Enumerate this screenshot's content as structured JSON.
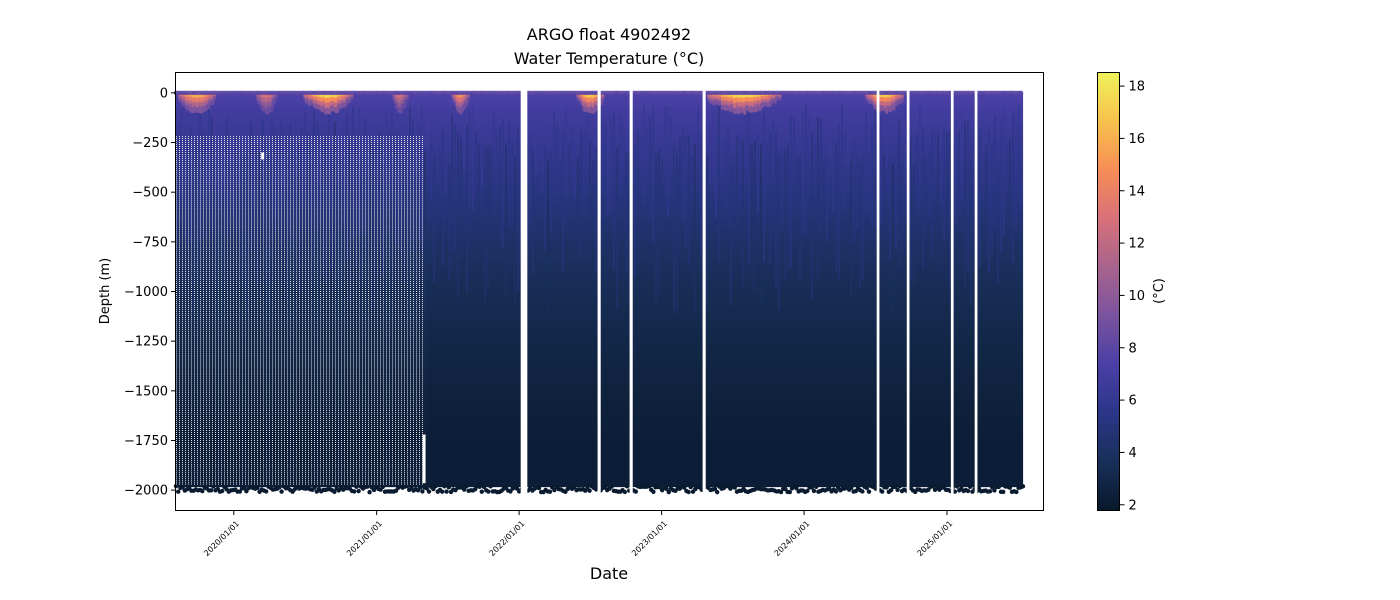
{
  "chart_data": {
    "type": "heatmap",
    "title": "ARGO float 4902492",
    "subtitle": "Water Temperature (°C)",
    "xlabel": "Date",
    "ylabel": "Depth (m)",
    "x_range": [
      "2019-08-06",
      "2025-09-04"
    ],
    "ylim": [
      -2100,
      100
    ],
    "x_ticks": [
      {
        "date": "2020-01-01",
        "label": "2020/01/01"
      },
      {
        "date": "2021-01-01",
        "label": "2021/01/01"
      },
      {
        "date": "2022-01-01",
        "label": "2022/01/01"
      },
      {
        "date": "2023-01-01",
        "label": "2023/01/01"
      },
      {
        "date": "2024-01-01",
        "label": "2024/01/01"
      },
      {
        "date": "2025-01-01",
        "label": "2025/01/01"
      }
    ],
    "y_ticks": [
      0,
      -250,
      -500,
      -750,
      -1000,
      -1250,
      -1500,
      -1750,
      -2000
    ],
    "y_tick_labels": [
      "0",
      "−250",
      "−500",
      "−750",
      "−1000",
      "−1250",
      "−1500",
      "−1750",
      "−2000"
    ],
    "colorbar": {
      "label": "(°C)",
      "range": [
        1.8,
        18.5
      ],
      "ticks": [
        2,
        4,
        6,
        8,
        10,
        12,
        14,
        16,
        18
      ],
      "colors": [
        "#08182a",
        "#182f59",
        "#2b3688",
        "#4b3fa6",
        "#7a539e",
        "#a8638d",
        "#d8717a",
        "#f78d56",
        "#f7c24c",
        "#eff25a"
      ]
    },
    "profile_span": {
      "start": "2019-08-06",
      "end": "2025-07-15"
    },
    "max_depth": -1985,
    "sparse_period": {
      "start": "2019-08-06",
      "end": "2021-05-05",
      "top_depth": -220
    },
    "gaps": [
      {
        "start": "2022-01-05",
        "end": "2022-01-22"
      },
      {
        "start": "2022-07-21",
        "end": "2022-07-29"
      },
      {
        "start": "2022-10-11",
        "end": "2022-10-19"
      },
      {
        "start": "2023-04-16",
        "end": "2023-04-24"
      },
      {
        "start": "2024-07-05",
        "end": "2024-07-12"
      },
      {
        "start": "2024-09-20",
        "end": "2024-09-27"
      },
      {
        "start": "2025-01-11",
        "end": "2025-01-18"
      },
      {
        "start": "2025-03-13",
        "end": "2025-03-20"
      }
    ],
    "temperature_profile": [
      {
        "depth": 0,
        "temp": 7.5
      },
      {
        "depth": -30,
        "temp": 7.3
      },
      {
        "depth": -100,
        "temp": 6.8
      },
      {
        "depth": -250,
        "temp": 6.2
      },
      {
        "depth": -500,
        "temp": 5.2
      },
      {
        "depth": -750,
        "temp": 4.2
      },
      {
        "depth": -1000,
        "temp": 3.5
      },
      {
        "depth": -1250,
        "temp": 3.0
      },
      {
        "depth": -1500,
        "temp": 2.6
      },
      {
        "depth": -1750,
        "temp": 2.3
      },
      {
        "depth": -2000,
        "temp": 2.1
      }
    ],
    "warm_surface_events": [
      {
        "start": "2019-08-15",
        "end": "2019-11-15",
        "peak_temp": 16
      },
      {
        "start": "2020-03-01",
        "end": "2020-04-20",
        "peak_temp": 13
      },
      {
        "start": "2020-07-01",
        "end": "2020-10-30",
        "peak_temp": 17.5
      },
      {
        "start": "2021-02-15",
        "end": "2021-03-20",
        "peak_temp": 13
      },
      {
        "start": "2021-07-15",
        "end": "2021-08-25",
        "peak_temp": 15
      },
      {
        "start": "2022-06-01",
        "end": "2022-08-05",
        "peak_temp": 17
      },
      {
        "start": "2023-05-01",
        "end": "2023-10-31",
        "peak_temp": 17.5
      },
      {
        "start": "2024-06-10",
        "end": "2024-09-10",
        "peak_temp": 17
      }
    ]
  }
}
